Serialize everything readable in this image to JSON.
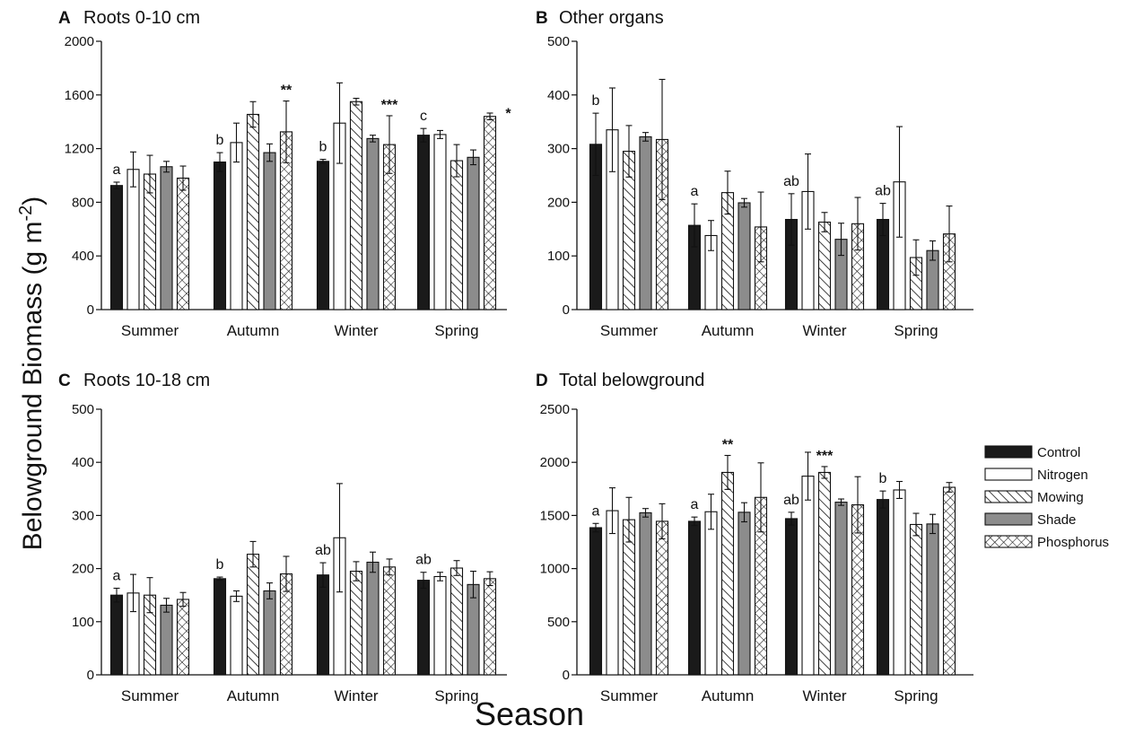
{
  "figure": {
    "ylabel": "Belowground Biomass (g m",
    "ylabel_sup": "-2",
    "ylabel_close": ")",
    "xlabel": "Season"
  },
  "colors": {
    "Control": "#1a1a1a",
    "Nitrogen": "#ffffff",
    "Mowing": "hatch-diagonal",
    "Shade": "#8c8c8c",
    "Phosphorus": "hatch-cross"
  },
  "legend": [
    "Control",
    "Nitrogen",
    "Mowing",
    "Shade",
    "Phosphorus"
  ],
  "chart_data": [
    {
      "type": "bar",
      "letter": "A",
      "title": "Roots 0-10 cm",
      "categories": [
        "Summer",
        "Autumn",
        "Winter",
        "Spring"
      ],
      "ylim": [
        0,
        2000
      ],
      "yticks": [
        0,
        400,
        800,
        1200,
        1600,
        2000
      ],
      "series": [
        {
          "name": "Control",
          "values": [
            925,
            1100,
            1105,
            1300
          ],
          "errors": [
            25,
            70,
            15,
            50
          ]
        },
        {
          "name": "Nitrogen",
          "values": [
            1045,
            1245,
            1390,
            1305
          ],
          "errors": [
            130,
            145,
            300,
            30
          ]
        },
        {
          "name": "Mowing",
          "values": [
            1010,
            1455,
            1550,
            1110
          ],
          "errors": [
            140,
            95,
            25,
            120
          ]
        },
        {
          "name": "Shade",
          "values": [
            1065,
            1170,
            1275,
            1135
          ],
          "errors": [
            40,
            65,
            25,
            55
          ]
        },
        {
          "name": "Phosphorus",
          "values": [
            980,
            1325,
            1230,
            1440
          ],
          "errors": [
            90,
            230,
            215,
            25
          ]
        }
      ],
      "letters": [
        {
          "category": "Summer",
          "text": "a"
        },
        {
          "category": "Autumn",
          "text": "b"
        },
        {
          "category": "Winter",
          "text": "b"
        },
        {
          "category": "Spring",
          "text": "c"
        }
      ],
      "stars": [
        {
          "category": "Autumn",
          "text": "**"
        },
        {
          "category": "Winter",
          "text": "***"
        },
        {
          "category": "Spring",
          "text": "*"
        }
      ]
    },
    {
      "type": "bar",
      "letter": "B",
      "title": "Other organs",
      "categories": [
        "Summer",
        "Autumn",
        "Winter",
        "Spring"
      ],
      "ylim": [
        0,
        500
      ],
      "yticks": [
        0,
        100,
        200,
        300,
        400,
        500
      ],
      "series": [
        {
          "name": "Control",
          "values": [
            308,
            157,
            168,
            168
          ],
          "errors": [
            58,
            40,
            48,
            30
          ]
        },
        {
          "name": "Nitrogen",
          "values": [
            335,
            138,
            220,
            238
          ],
          "errors": [
            78,
            28,
            70,
            103
          ]
        },
        {
          "name": "Mowing",
          "values": [
            295,
            218,
            163,
            97
          ],
          "errors": [
            48,
            40,
            18,
            33
          ]
        },
        {
          "name": "Shade",
          "values": [
            322,
            199,
            131,
            110
          ],
          "errors": [
            8,
            8,
            30,
            18
          ]
        },
        {
          "name": "Phosphorus",
          "values": [
            317,
            154,
            160,
            141
          ],
          "errors": [
            112,
            65,
            49,
            52
          ]
        }
      ],
      "letters": [
        {
          "category": "Summer",
          "text": "b"
        },
        {
          "category": "Autumn",
          "text": "a"
        },
        {
          "category": "Winter",
          "text": "ab"
        },
        {
          "category": "Spring",
          "text": "ab"
        }
      ],
      "stars": []
    },
    {
      "type": "bar",
      "letter": "C",
      "title": "Roots 10-18 cm",
      "categories": [
        "Summer",
        "Autumn",
        "Winter",
        "Spring"
      ],
      "ylim": [
        0,
        500
      ],
      "yticks": [
        0,
        100,
        200,
        300,
        400,
        500
      ],
      "series": [
        {
          "name": "Control",
          "values": [
            150,
            181,
            188,
            178
          ],
          "errors": [
            13,
            3,
            23,
            15
          ]
        },
        {
          "name": "Nitrogen",
          "values": [
            154,
            148,
            258,
            185
          ],
          "errors": [
            35,
            10,
            102,
            8
          ]
        },
        {
          "name": "Mowing",
          "values": [
            150,
            227,
            195,
            201
          ],
          "errors": [
            33,
            24,
            18,
            14
          ]
        },
        {
          "name": "Shade",
          "values": [
            131,
            158,
            212,
            170
          ],
          "errors": [
            13,
            15,
            19,
            25
          ]
        },
        {
          "name": "Phosphorus",
          "values": [
            142,
            190,
            203,
            181
          ],
          "errors": [
            13,
            33,
            15,
            13
          ]
        }
      ],
      "letters": [
        {
          "category": "Summer",
          "text": "a"
        },
        {
          "category": "Autumn",
          "text": "b"
        },
        {
          "category": "Winter",
          "text": "ab"
        },
        {
          "category": "Spring",
          "text": "ab"
        }
      ],
      "stars": []
    },
    {
      "type": "bar",
      "letter": "D",
      "title": "Total belowground",
      "categories": [
        "Summer",
        "Autumn",
        "Winter",
        "Spring"
      ],
      "ylim": [
        0,
        2500
      ],
      "yticks": [
        0,
        500,
        1000,
        1500,
        2000,
        2500
      ],
      "series": [
        {
          "name": "Control",
          "values": [
            1385,
            1445,
            1470,
            1650
          ],
          "errors": [
            40,
            40,
            60,
            80
          ]
        },
        {
          "name": "Nitrogen",
          "values": [
            1545,
            1535,
            1870,
            1740
          ],
          "errors": [
            215,
            165,
            225,
            80
          ]
        },
        {
          "name": "Mowing",
          "values": [
            1460,
            1905,
            1905,
            1415
          ],
          "errors": [
            210,
            160,
            55,
            105
          ]
        },
        {
          "name": "Shade",
          "values": [
            1525,
            1530,
            1625,
            1420
          ],
          "errors": [
            40,
            90,
            30,
            90
          ]
        },
        {
          "name": "Phosphorus",
          "values": [
            1445,
            1670,
            1600,
            1765
          ],
          "errors": [
            165,
            325,
            265,
            45
          ]
        }
      ],
      "letters": [
        {
          "category": "Summer",
          "text": "a"
        },
        {
          "category": "Autumn",
          "text": "a"
        },
        {
          "category": "Winter",
          "text": "ab"
        },
        {
          "category": "Spring",
          "text": "b"
        }
      ],
      "stars": [
        {
          "category": "Autumn",
          "text": "**"
        },
        {
          "category": "Winter",
          "text": "***"
        }
      ]
    }
  ]
}
